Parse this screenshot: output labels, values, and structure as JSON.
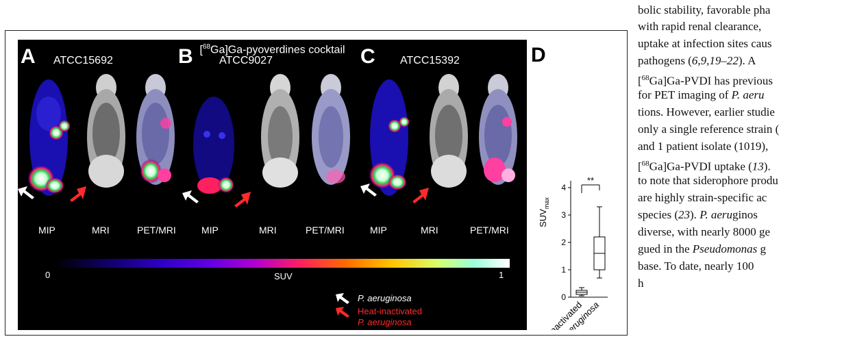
{
  "figure": {
    "title": "[68Ga]Ga-pyoverdines cocktail",
    "panels": [
      {
        "letter": "A",
        "strain": "ATCC15692",
        "labels": [
          "MIP",
          "MRI",
          "PET/MRI"
        ]
      },
      {
        "letter": "B",
        "strain": "ATCC9027",
        "labels": [
          "MIP",
          "MRI",
          "PET/MRI"
        ]
      },
      {
        "letter": "C",
        "strain": "ATCC15392",
        "labels": [
          "MIP",
          "MRI",
          "PET/MRI"
        ]
      }
    ],
    "colorbar": {
      "label": "SUV",
      "min": "0",
      "max": "1"
    },
    "legend": {
      "white_arrow": "P. aeruginosa",
      "red_arrow_line1": "Heat-inactivated",
      "red_arrow_line2": "P. aeruginosa"
    },
    "colors": {
      "white_arrow": "#ffffff",
      "red_arrow": "#ff2a2a"
    }
  },
  "chart_data": {
    "type": "box",
    "panel_letter": "D",
    "ylabel": "SUVmax",
    "ylabel_main": "SUV",
    "ylabel_sub": "max",
    "yticks": [
      "0",
      "1",
      "2",
      "3",
      "4"
    ],
    "ylim": [
      0,
      4
    ],
    "categories": [
      "Heat-inactivated",
      "P. aeruginosa"
    ],
    "significance": "**",
    "boxes": [
      {
        "category": "Heat-inactivated",
        "min": 0.05,
        "q1": 0.1,
        "median": 0.18,
        "q3": 0.25,
        "max": 0.35
      },
      {
        "category": "P. aeruginosa",
        "min": 0.7,
        "q1": 1.0,
        "median": 1.6,
        "q3": 2.2,
        "max": 3.3
      }
    ]
  },
  "body_text": [
    "bolic stability, favorable pha",
    "with rapid renal clearance,",
    "uptake at infection sites caus",
    "pathogens (6,9,19–22). A",
    "[68Ga]Ga-PVDI has previous",
    "for PET imaging of P. aeru",
    "tions. However, earlier studie",
    "only a single reference strain (",
    "and 1 patient isolate (1019),",
    "[68Ga]Ga-PVDI uptake (13).",
    "to note that siderophore produ",
    "are highly strain-specific ac",
    "species (23). P. aeruginos",
    "diverse, with nearly 8000 ge",
    "gued in the Pseudomonas g",
    "base. To date, nearly 100",
    "h"
  ]
}
